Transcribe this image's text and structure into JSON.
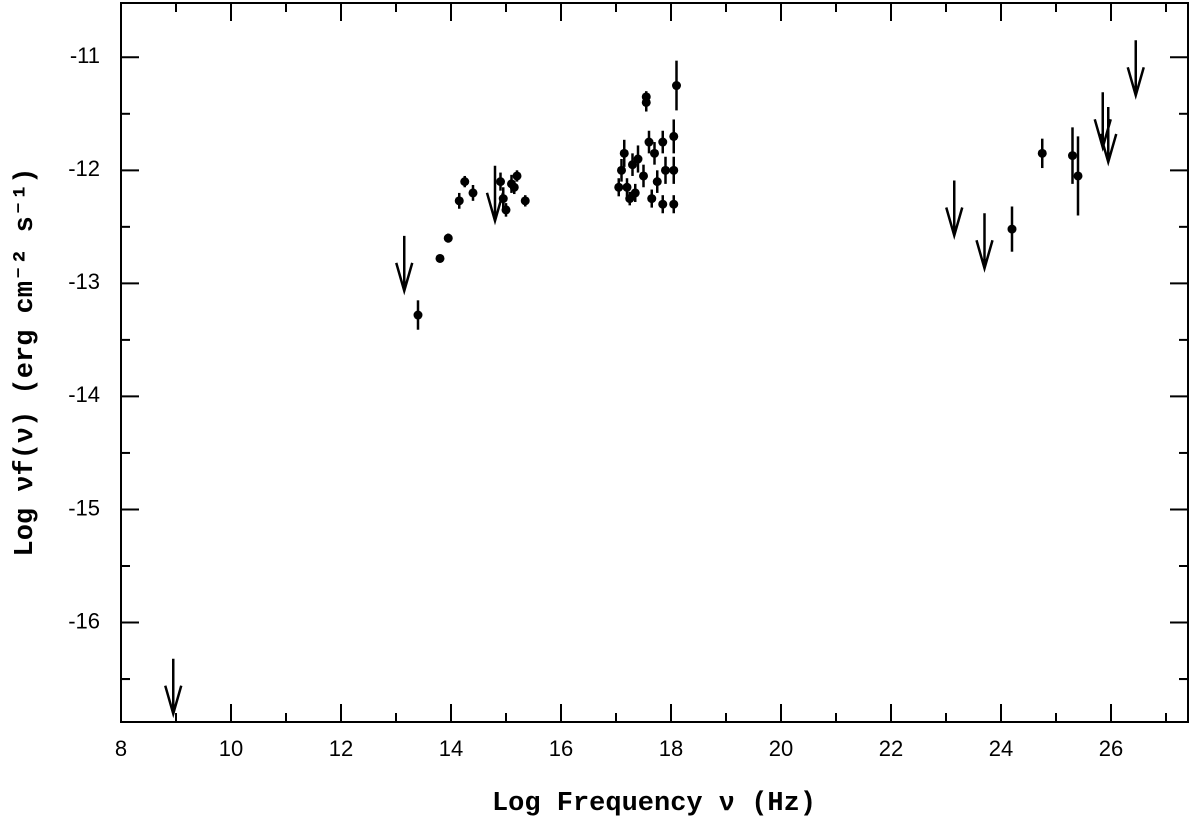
{
  "chart_data": {
    "type": "scatter",
    "x_label": "Log Frequency ν (Hz)",
    "y_label": "Log νf(ν) (erg cm⁻² s⁻¹)",
    "xlim": [
      8,
      27.4
    ],
    "ylim": [
      -16.88,
      -10.52
    ],
    "xticks": [
      8,
      10,
      12,
      14,
      16,
      18,
      20,
      22,
      24,
      26
    ],
    "yticks": [
      -16,
      -15,
      -14,
      -13,
      -12,
      -11
    ],
    "color": "#000000",
    "series": [
      {
        "x": [
          13.4,
          13.8,
          13.95,
          14.15,
          14.25,
          14.4,
          14.9,
          14.95,
          15.0,
          15.1,
          15.15,
          15.2,
          15.35,
          17.05,
          17.1,
          17.15,
          17.2,
          17.25,
          17.3,
          17.35,
          17.4,
          17.5,
          17.55,
          17.55,
          17.6,
          17.65,
          17.7,
          17.75,
          17.85,
          17.85,
          17.9,
          18.05,
          18.05,
          18.05,
          18.1,
          24.2,
          24.75,
          25.3,
          25.4
        ],
        "y": [
          -13.28,
          -12.78,
          -12.6,
          -12.27,
          -12.1,
          -12.2,
          -12.1,
          -12.25,
          -12.35,
          -12.12,
          -12.15,
          -12.05,
          -12.27,
          -12.15,
          -12.0,
          -11.85,
          -12.15,
          -12.25,
          -11.95,
          -12.2,
          -11.9,
          -12.05,
          -11.4,
          -11.35,
          -11.75,
          -12.25,
          -11.85,
          -12.1,
          -12.3,
          -11.75,
          -12.0,
          -11.7,
          -12.0,
          -12.3,
          -11.25,
          -12.52,
          -11.85,
          -11.87,
          -12.05
        ],
        "yerr": [
          0.13,
          0.03,
          0.04,
          0.07,
          0.05,
          0.07,
          0.08,
          0.1,
          0.06,
          0.08,
          0.06,
          0.05,
          0.05,
          0.08,
          0.1,
          0.12,
          0.08,
          0.06,
          0.1,
          0.08,
          0.12,
          0.1,
          0.08,
          0.05,
          0.1,
          0.08,
          0.1,
          0.1,
          0.08,
          0.1,
          0.12,
          0.15,
          0.12,
          0.08,
          0.22,
          0.2,
          0.13,
          0.25,
          0.35
        ]
      },
      {
        "upper_limit": true,
        "x": [
          8.95,
          13.15,
          14.8,
          23.15,
          23.7,
          25.85,
          25.95,
          26.45
        ],
        "y": [
          -16.32,
          -12.58,
          -11.96,
          -12.09,
          -12.38,
          -11.31,
          -11.44,
          -10.85
        ]
      }
    ]
  }
}
